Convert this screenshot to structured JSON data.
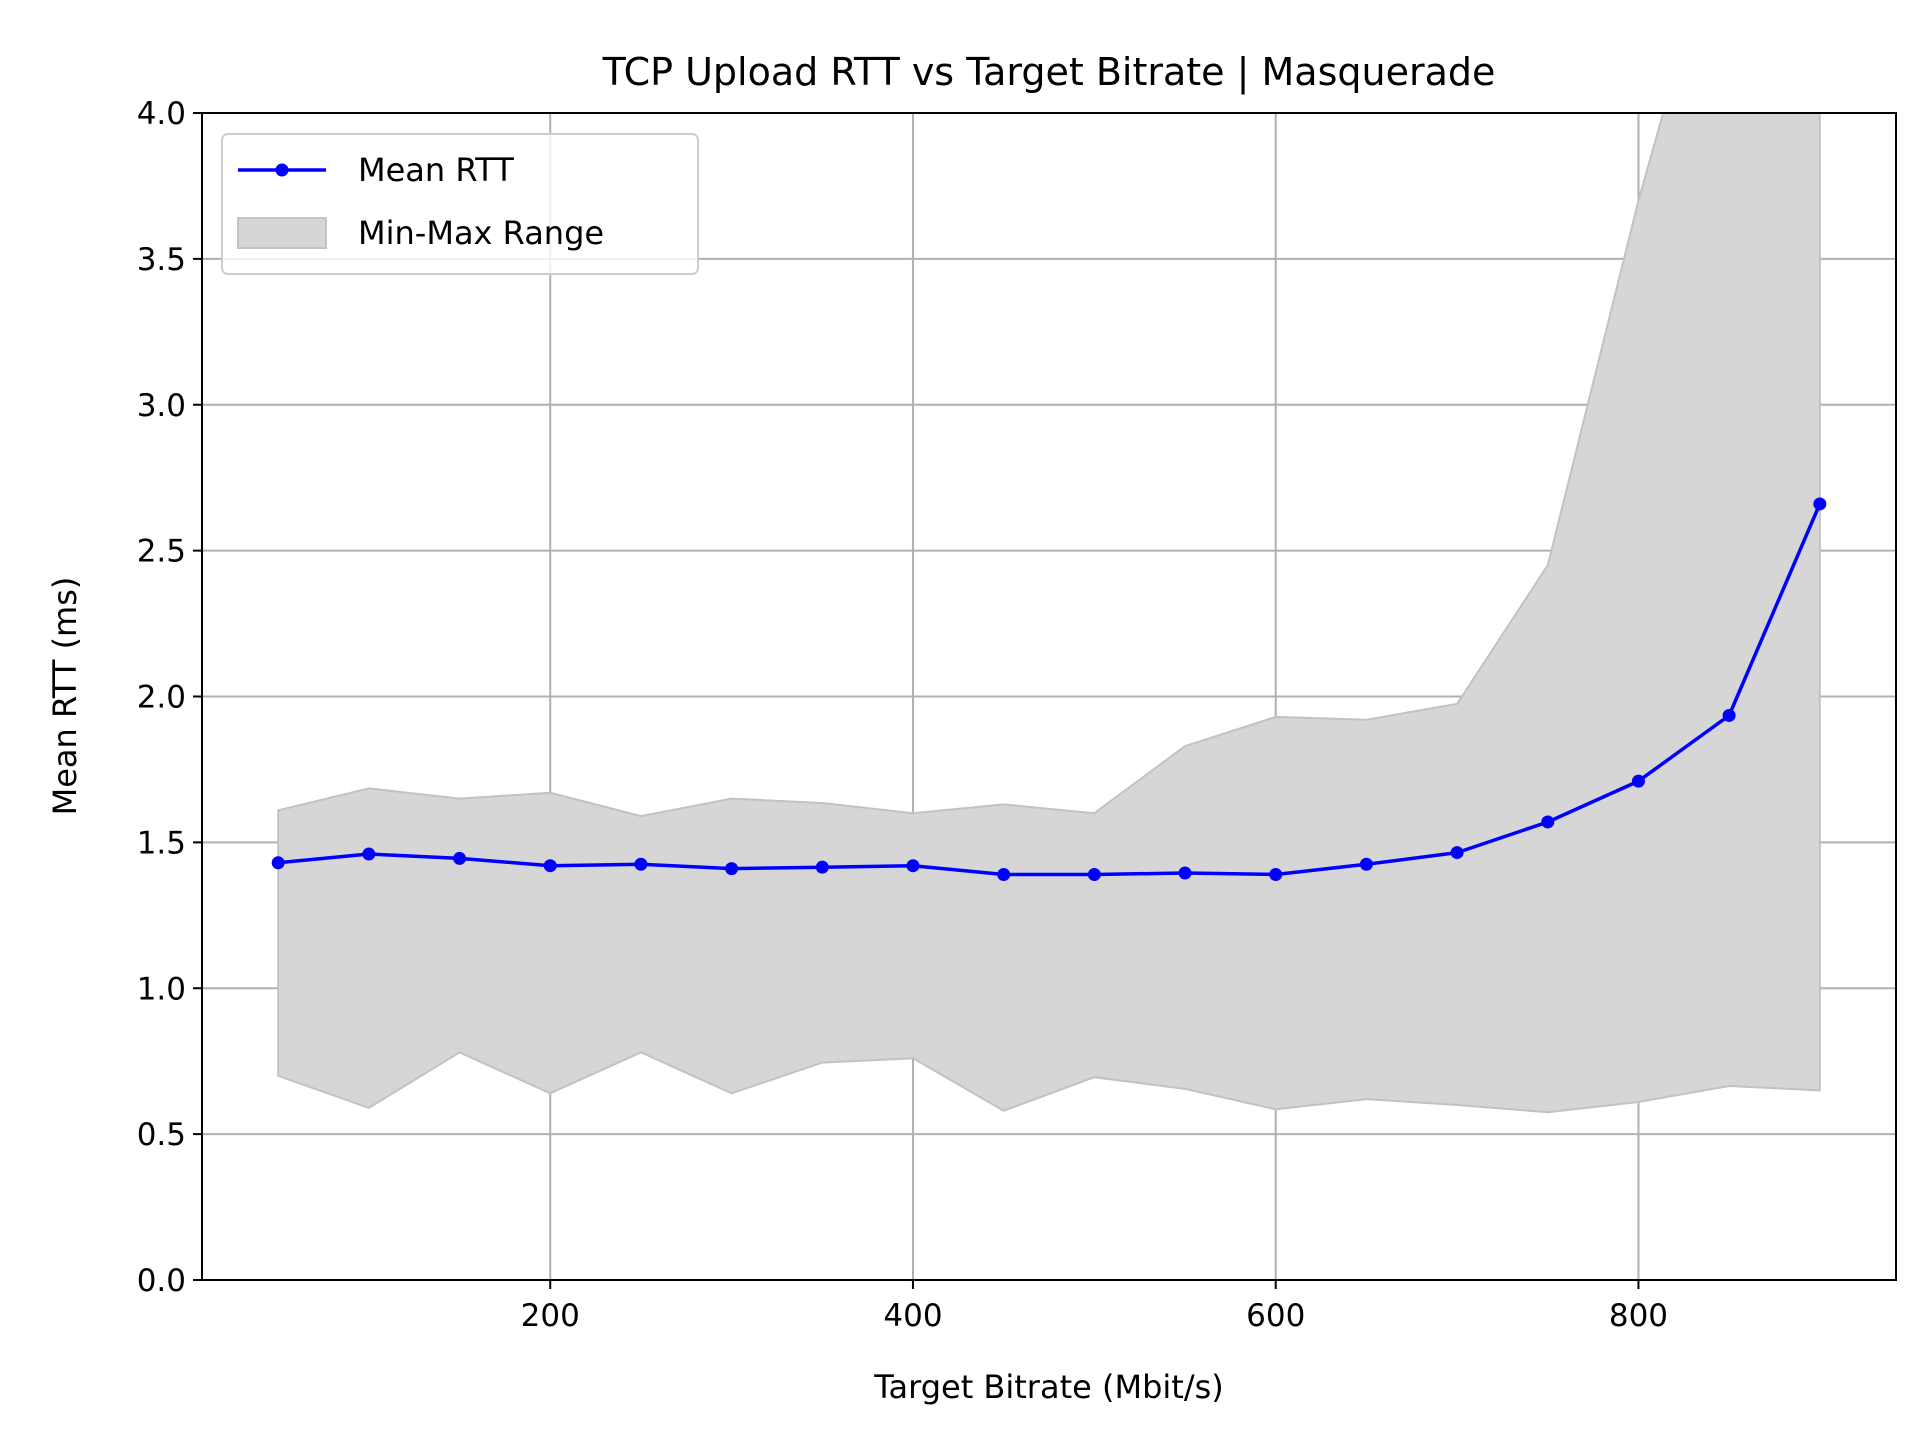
{
  "chart_data": {
    "type": "line",
    "title": "TCP Upload RTT vs Target Bitrate | Masquerade",
    "xlabel": "Target Bitrate (Mbit/s)",
    "ylabel": "Mean RTT (ms)",
    "xlim": [
      8,
      942
    ],
    "ylim": [
      0.0,
      4.0
    ],
    "xticks": [
      200,
      400,
      600,
      800
    ],
    "xtick_labels": [
      "200",
      "400",
      "600",
      "800"
    ],
    "yticks": [
      0.0,
      0.5,
      1.0,
      1.5,
      2.0,
      2.5,
      3.0,
      3.5,
      4.0
    ],
    "ytick_labels": [
      "0.0",
      "0.5",
      "1.0",
      "1.5",
      "2.0",
      "2.5",
      "3.0",
      "3.5",
      "4.0"
    ],
    "grid": true,
    "legend_position": "top-left",
    "x": [
      50,
      100,
      150,
      200,
      250,
      300,
      350,
      400,
      450,
      500,
      550,
      600,
      650,
      700,
      750,
      800,
      850,
      900
    ],
    "series": [
      {
        "name": "Mean RTT",
        "kind": "line",
        "color": "#0000ff",
        "values": [
          1.43,
          1.46,
          1.445,
          1.42,
          1.425,
          1.41,
          1.415,
          1.42,
          1.39,
          1.39,
          1.395,
          1.39,
          1.425,
          1.465,
          1.57,
          1.71,
          1.935,
          2.66
        ]
      },
      {
        "name": "Min-Max Range",
        "kind": "band",
        "color": "#d6d6d6",
        "min": [
          0.7,
          0.59,
          0.78,
          0.64,
          0.78,
          0.64,
          0.745,
          0.76,
          0.58,
          0.695,
          0.655,
          0.585,
          0.62,
          0.6,
          0.575,
          0.61,
          0.665,
          0.65
        ],
        "max": [
          1.61,
          1.685,
          1.65,
          1.67,
          1.59,
          1.65,
          1.635,
          1.6,
          1.63,
          1.6,
          1.83,
          1.93,
          1.92,
          1.975,
          2.45,
          3.7,
          4.8,
          4.5
        ]
      }
    ]
  }
}
